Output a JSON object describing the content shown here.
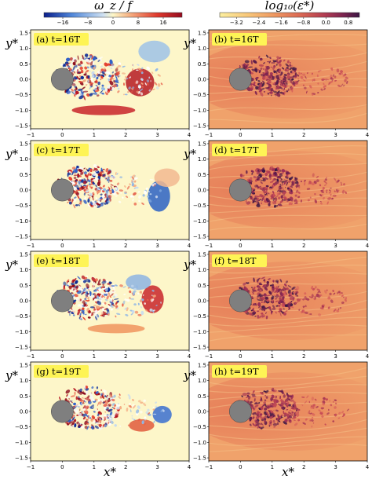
{
  "colorbars": [
    {
      "title": "ω_z / f",
      "ticks": [
        "−16",
        "−8",
        "0",
        "8",
        "16"
      ],
      "tick_values": [
        -16,
        -8,
        0,
        8,
        16
      ],
      "range": [
        -22,
        22
      ],
      "colormap": "diverging blue-white-red",
      "colors": [
        "#0a1e8c",
        "#4f86d9",
        "#cfe1f2",
        "#fdf7c8",
        "#f6b083",
        "#e0392d",
        "#960b1f"
      ]
    },
    {
      "title": "log₁₀(ε*)",
      "ticks": [
        "−3.2",
        "−2.4",
        "−1.6",
        "−0.8",
        "0.0",
        "0.8"
      ],
      "tick_values": [
        -3.2,
        -2.4,
        -1.6,
        -0.8,
        0.0,
        0.8
      ],
      "range": [
        -3.8,
        1.2
      ],
      "colormap": "sequential yellow-orange-purple",
      "colors": [
        "#fcef9f",
        "#f8c77a",
        "#ee9560",
        "#da6753",
        "#b23c52",
        "#7e2550",
        "#3c1644"
      ]
    }
  ],
  "panels": [
    {
      "label": "(a) t=16T",
      "field": "vorticity",
      "time": "16T"
    },
    {
      "label": "(b) t=16T",
      "field": "dissipation",
      "time": "16T"
    },
    {
      "label": "(c) t=17T",
      "field": "vorticity",
      "time": "17T"
    },
    {
      "label": "(d) t=17T",
      "field": "dissipation",
      "time": "17T"
    },
    {
      "label": "(e) t=18T",
      "field": "vorticity",
      "time": "18T"
    },
    {
      "label": "(f) t=18T",
      "field": "dissipation",
      "time": "18T"
    },
    {
      "label": "(g) t=19T",
      "field": "vorticity",
      "time": "19T"
    },
    {
      "label": "(h) t=19T",
      "field": "dissipation",
      "time": "19T"
    }
  ],
  "axes": {
    "xlabel": "x*",
    "ylabel": "y*",
    "xlim": [
      -1,
      4
    ],
    "ylim": [
      -1.6,
      1.6
    ],
    "xticks": [
      "−1",
      "0",
      "1",
      "2",
      "3",
      "4"
    ],
    "xtick_values": [
      -1,
      0,
      1,
      2,
      3,
      4
    ],
    "yticks": [
      "1.5",
      "1.0",
      "0.5",
      "0.0",
      "−0.5",
      "−1.0",
      "−1.5"
    ],
    "ytick_values": [
      1.5,
      1.0,
      0.5,
      0.0,
      -0.5,
      -1.0,
      -1.5
    ]
  },
  "cylinder": {
    "center": [
      0,
      0
    ],
    "radius": 0.35,
    "color": "#7f7f7f"
  },
  "chart_data": {
    "type": "heatmap",
    "layout": "4 rows × 2 columns",
    "title": "",
    "xlabel": "x*",
    "ylabel": "y*",
    "xlim": [
      -1,
      4
    ],
    "ylim": [
      -1.6,
      1.6
    ],
    "grid": false,
    "series": [
      {
        "name": "ω_z / f",
        "panels": [
          "(a)",
          "(c)",
          "(e)",
          "(g)"
        ],
        "times": [
          "16T",
          "17T",
          "18T",
          "19T"
        ],
        "range": [
          -22,
          22
        ]
      },
      {
        "name": "log₁₀(ε*)",
        "panels": [
          "(b)",
          "(d)",
          "(f)",
          "(h)"
        ],
        "times": [
          "16T",
          "17T",
          "18T",
          "19T"
        ],
        "range": [
          -3.8,
          1.2
        ]
      }
    ]
  }
}
